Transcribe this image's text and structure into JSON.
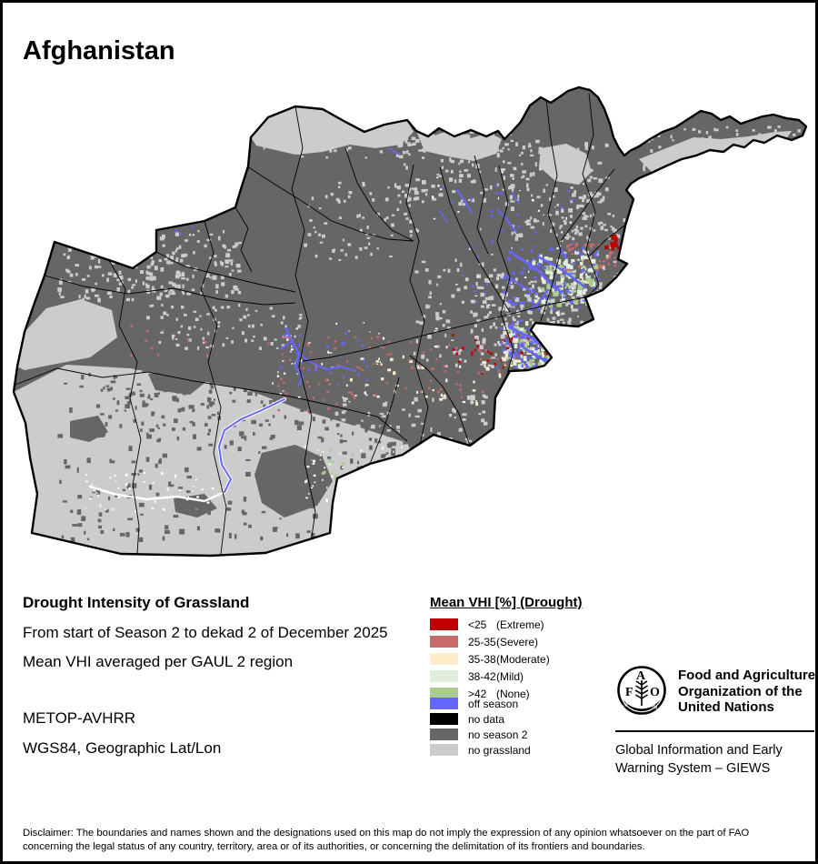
{
  "page": {
    "title": "Afghanistan"
  },
  "map_info": {
    "title": "Drought Intensity of Grassland",
    "period": "From start of Season 2 to dekad 2 of December 2025",
    "method": "Mean VHI averaged per GAUL 2 region",
    "sensor": "METOP-AVHRR",
    "projection": "WGS84, Geographic Lat/Lon"
  },
  "legend": {
    "title": "Mean VHI [%] (Drought)",
    "classes": [
      {
        "value": "<25",
        "qualifier": "(Extreme)",
        "color": "#c00000"
      },
      {
        "value": "25-35",
        "qualifier": "(Severe)",
        "color": "#c66a6a"
      },
      {
        "value": "35-38",
        "qualifier": "(Moderate)",
        "color": "#fdeecb"
      },
      {
        "value": "38-42",
        "qualifier": "(Mild)",
        "color": "#e0eedb"
      },
      {
        "value": ">42",
        "qualifier": "(None)",
        "color": "#a9cc8e"
      }
    ],
    "other": [
      {
        "label": "off season",
        "color": "#6666ff"
      },
      {
        "label": "no data",
        "color": "#000000"
      },
      {
        "label": "no season 2",
        "color": "#666666"
      },
      {
        "label": "no grassland",
        "color": "#cccccc"
      }
    ]
  },
  "fao": {
    "org_lines": [
      "Food and Agriculture",
      "Organization of the",
      "United Nations"
    ],
    "giews_lines": [
      "Global Information and Early",
      "Warning System – GIEWS"
    ],
    "logo_letters": {
      "f": "F",
      "a": "A",
      "o": "O"
    },
    "logo_motto": {
      "left": "FIAT",
      "right": "PANIS"
    }
  },
  "disclaimer": {
    "line1": "Disclaimer: The boundaries and names shown and the designations used on this map do not imply the expression of any opinion whatsoever on the part of FAO",
    "line2": "concerning the legal status of any country, territory, area or of its authorities, or concerning the delimitation of its frontiers and boundaries."
  }
}
